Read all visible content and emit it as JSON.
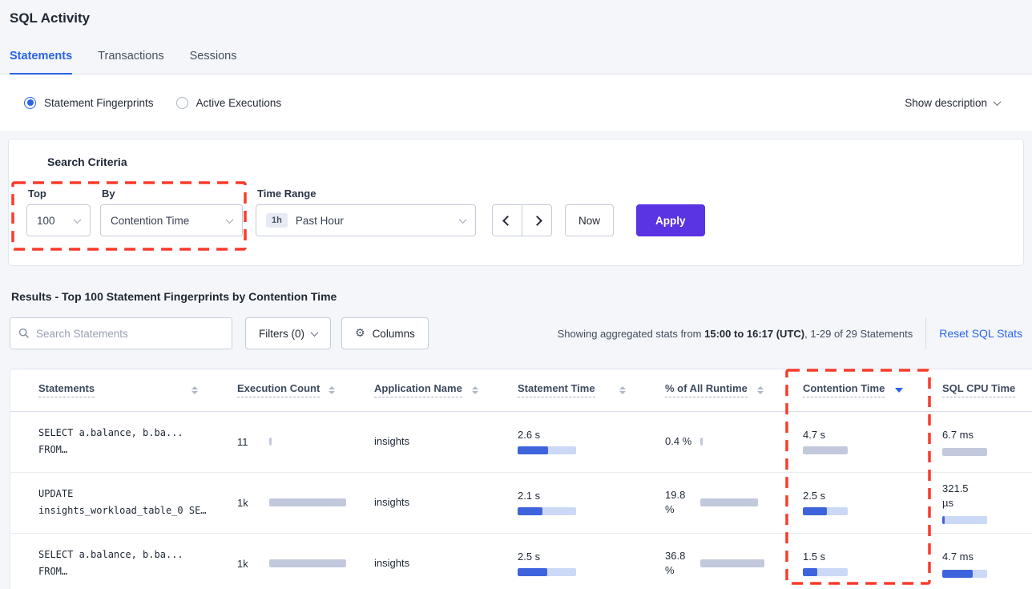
{
  "colors": {
    "accent_blue": "#2a63e8",
    "apply_button": "#5a33e2",
    "annotation_red": "#fa3b2c",
    "bar_blue": "#3e64dd",
    "bar_blue_track": "#ccd9f6",
    "bar_gray": "#c3c9dc"
  },
  "page": {
    "title": "SQL Activity"
  },
  "tabs": [
    {
      "label": "Statements",
      "active": true
    },
    {
      "label": "Transactions",
      "active": false
    },
    {
      "label": "Sessions",
      "active": false
    }
  ],
  "view_options": {
    "statement_fingerprints": "Statement Fingerprints",
    "active_executions": "Active Executions",
    "show_description": "Show description"
  },
  "search_criteria": {
    "title": "Search Criteria",
    "top_label": "Top",
    "top_value": "100",
    "by_label": "By",
    "by_value": "Contention Time",
    "time_range_label": "Time Range",
    "time_range_badge": "1h",
    "time_range_value": "Past Hour",
    "now_button": "Now",
    "apply_button": "Apply"
  },
  "results": {
    "title": "Results - Top 100 Statement Fingerprints by Contention Time",
    "search_placeholder": "Search Statements",
    "filters_button": "Filters (0)",
    "columns_button": "Columns",
    "stats_prefix": "Showing aggregated stats from ",
    "stats_bold": "15:00 to 16:17 (UTC)",
    "stats_suffix": ", 1-29 of 29 Statements",
    "reset_link": "Reset SQL Stats"
  },
  "table": {
    "headers": [
      "Statements",
      "Execution Count",
      "Application Name",
      "Statement Time",
      "% of All Runtime",
      "Contention Time",
      "SQL CPU Time"
    ],
    "sorted_by": "Contention Time",
    "sort_direction": "desc",
    "rows": [
      {
        "statement_line1": "SELECT a.balance, b.ba...",
        "statement_line2": "FROM…",
        "execution_count": {
          "value": "11",
          "bar": {
            "fill": 0.03,
            "color": "gray",
            "track": false
          }
        },
        "application_name": "insights",
        "statement_time": {
          "value": "2.6 s",
          "bar": {
            "fill": 0.52,
            "color": "blue",
            "track": true
          }
        },
        "pct_of_all_runtime": {
          "value": "0.4 %",
          "bar": {
            "fill": 0.04,
            "color": "gray",
            "track": false
          }
        },
        "contention_time": {
          "value": "4.7 s",
          "bar": {
            "fill": 1,
            "color": "gray",
            "track": false
          }
        },
        "sql_cpu_time": {
          "value": "6.7 ms",
          "bar": {
            "fill": 1,
            "color": "gray",
            "track": false
          }
        }
      },
      {
        "statement_line1": "UPDATE",
        "statement_line2": "insights_workload_table_0 SE…",
        "execution_count": {
          "value": "1k",
          "bar": {
            "fill": 1,
            "color": "gray",
            "track": false
          }
        },
        "application_name": "insights",
        "statement_time": {
          "value": "2.1 s",
          "bar": {
            "fill": 0.42,
            "color": "blue",
            "track": true
          }
        },
        "pct_of_all_runtime": {
          "value": "19.8 %",
          "bar": {
            "fill": 0.9,
            "color": "gray",
            "track": false
          }
        },
        "contention_time": {
          "value": "2.5 s",
          "bar": {
            "fill": 0.53,
            "color": "blue",
            "track": true
          }
        },
        "sql_cpu_time": {
          "value": "321.5 µs",
          "bar": {
            "fill": 0.06,
            "color": "blue",
            "track": true
          }
        }
      },
      {
        "statement_line1": "SELECT a.balance, b.ba...",
        "statement_line2": "FROM…",
        "execution_count": {
          "value": "1k",
          "bar": {
            "fill": 1,
            "color": "gray",
            "track": false
          }
        },
        "application_name": "insights",
        "statement_time": {
          "value": "2.5 s",
          "bar": {
            "fill": 0.5,
            "color": "blue",
            "track": true
          }
        },
        "pct_of_all_runtime": {
          "value": "36.8 %",
          "bar": {
            "fill": 1,
            "color": "gray",
            "track": false
          }
        },
        "contention_time": {
          "value": "1.5 s",
          "bar": {
            "fill": 0.32,
            "color": "blue",
            "track": true
          }
        },
        "sql_cpu_time": {
          "value": "4.7 ms",
          "bar": {
            "fill": 0.68,
            "color": "blue",
            "track": true
          }
        }
      }
    ]
  }
}
